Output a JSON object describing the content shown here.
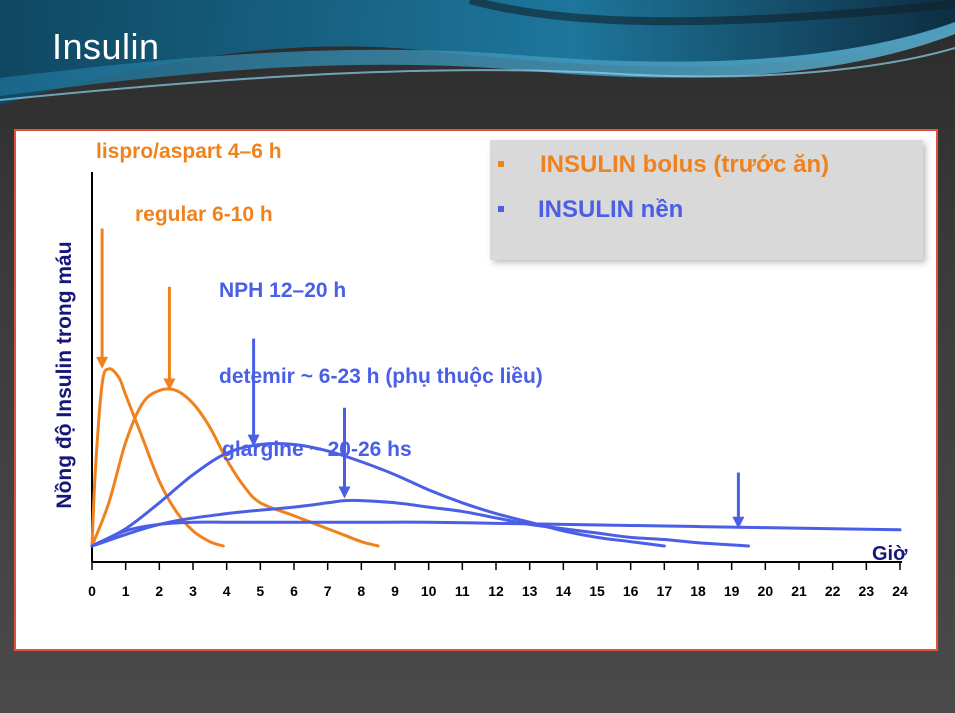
{
  "slide": {
    "title": "Insulin"
  },
  "colors": {
    "bolus": "#f0821e",
    "basal": "#4a5ee6",
    "axis": "#17177a"
  },
  "legend": [
    {
      "label": "INSULIN  bolus (trước ăn)",
      "color": "#f0821e"
    },
    {
      "label": "INSULIN  nền",
      "color": "#4a5ee6"
    }
  ],
  "chart_data": {
    "type": "line",
    "ylabel": "Nồng độ Insulin trong máu",
    "xlabel": "Giờ",
    "xlim": [
      0,
      24
    ],
    "ylim": [
      0,
      1
    ],
    "x_ticks": [
      0,
      1,
      2,
      3,
      4,
      5,
      6,
      7,
      8,
      9,
      10,
      11,
      12,
      13,
      14,
      15,
      16,
      17,
      18,
      19,
      20,
      21,
      22,
      23,
      24
    ],
    "legend_position": "top-right",
    "annotations": [
      {
        "text": "lispro/aspart 4–6 h",
        "color": "#f0821e"
      },
      {
        "text": "regular 6-10 h",
        "color": "#f0821e"
      },
      {
        "text": "NPH 12–20 h",
        "color": "#4a5ee6"
      },
      {
        "text": "detemir ~ 6-23 h (phụ thuộc liều)",
        "color": "#4a5ee6"
      },
      {
        "text": "glargine ~ 20-26 hs",
        "color": "#4a5ee6"
      }
    ],
    "arrows": [
      {
        "x": 0.3,
        "y_from": 1.47,
        "y_to": 0.82,
        "color": "#f0821e"
      },
      {
        "x": 2.3,
        "y_from": 1.2,
        "y_to": 0.72,
        "color": "#f0821e"
      },
      {
        "x": 4.8,
        "y_from": 0.96,
        "y_to": 0.46,
        "color": "#4a5ee6"
      },
      {
        "x": 7.5,
        "y_from": 0.64,
        "y_to": 0.22,
        "color": "#4a5ee6"
      },
      {
        "x": 19.2,
        "y_from": 0.34,
        "y_to": 0.08,
        "color": "#4a5ee6"
      }
    ],
    "series": [
      {
        "color": "#f0821e",
        "x": [
          0,
          0.1,
          0.3,
          0.5,
          0.8,
          1,
          1.5,
          2,
          2.5,
          3,
          3.5,
          3.9
        ],
        "y": [
          0,
          0.35,
          0.75,
          0.82,
          0.78,
          0.7,
          0.5,
          0.3,
          0.16,
          0.07,
          0.02,
          0
        ]
      },
      {
        "color": "#f0821e",
        "x": [
          0,
          0.5,
          1,
          1.5,
          2,
          2.5,
          3,
          3.5,
          4,
          4.5,
          5,
          6,
          7,
          7.5,
          8,
          8.5
        ],
        "y": [
          0,
          0.2,
          0.48,
          0.66,
          0.72,
          0.72,
          0.66,
          0.55,
          0.4,
          0.28,
          0.2,
          0.14,
          0.08,
          0.05,
          0.02,
          0
        ]
      },
      {
        "color": "#4a5ee6",
        "x": [
          0,
          1,
          2,
          3,
          4,
          5,
          6,
          7,
          8,
          9,
          10,
          11,
          12,
          13,
          14,
          15,
          16,
          17
        ],
        "y": [
          0,
          0.08,
          0.2,
          0.33,
          0.43,
          0.47,
          0.47,
          0.44,
          0.39,
          0.33,
          0.26,
          0.2,
          0.15,
          0.11,
          0.07,
          0.04,
          0.02,
          0
        ]
      },
      {
        "color": "#4a5ee6",
        "x": [
          0,
          2,
          4,
          6,
          7,
          7.5,
          8,
          9,
          10,
          11,
          12,
          13,
          14,
          15,
          16,
          17,
          18,
          19,
          19.5
        ],
        "y": [
          0,
          0.1,
          0.15,
          0.18,
          0.2,
          0.21,
          0.21,
          0.2,
          0.18,
          0.16,
          0.13,
          0.1,
          0.08,
          0.06,
          0.04,
          0.03,
          0.015,
          0.005,
          0
        ]
      },
      {
        "color": "#4a5ee6",
        "x": [
          0,
          1,
          2,
          3,
          4,
          5,
          6,
          8,
          10,
          12,
          14,
          16,
          18,
          20,
          22,
          24
        ],
        "y": [
          0,
          0.07,
          0.1,
          0.11,
          0.11,
          0.11,
          0.11,
          0.11,
          0.11,
          0.105,
          0.1,
          0.095,
          0.09,
          0.085,
          0.08,
          0.075
        ]
      }
    ]
  }
}
